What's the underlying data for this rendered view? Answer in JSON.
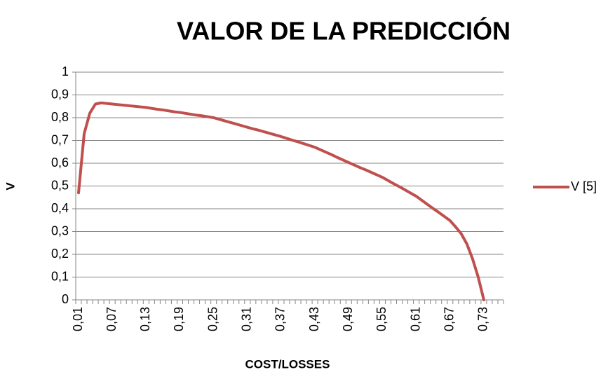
{
  "chart_data": {
    "type": "line",
    "title": "VALOR DE LA PREDICCIÓN",
    "x_label": "COST/LOSSES",
    "y_label": "V",
    "categories": [
      "0,01",
      null,
      null,
      null,
      null,
      null,
      "0,07",
      null,
      null,
      null,
      null,
      null,
      "0,13",
      null,
      null,
      null,
      null,
      null,
      "0,19",
      null,
      null,
      null,
      null,
      null,
      "0,25",
      null,
      null,
      null,
      null,
      null,
      "0,31",
      null,
      null,
      null,
      null,
      null,
      "0,37",
      null,
      null,
      null,
      null,
      null,
      "0,43",
      null,
      null,
      null,
      null,
      null,
      "0,49",
      null,
      null,
      null,
      null,
      null,
      "0,55",
      null,
      null,
      null,
      null,
      null,
      "0,61",
      null,
      null,
      null,
      null,
      null,
      "0,67",
      null,
      null,
      null,
      null,
      null,
      "0,73",
      null,
      null,
      null
    ],
    "series": [
      {
        "name": "V [5]",
        "color": "#c0504d",
        "values": [
          0.47,
          0.73,
          0.82,
          0.86,
          0.865,
          0.8625,
          0.86,
          0.8575,
          0.855,
          0.8525,
          0.85,
          0.8475,
          0.845,
          0.841,
          0.837,
          0.834,
          0.83,
          0.826,
          0.823,
          0.819,
          0.815,
          0.811,
          0.808,
          0.804,
          0.8,
          0.793,
          0.786,
          0.779,
          0.772,
          0.765,
          0.758,
          0.751,
          0.745,
          0.738,
          0.731,
          0.724,
          0.717,
          0.709,
          0.701,
          0.694,
          0.686,
          0.678,
          0.67,
          0.659,
          0.648,
          0.637,
          0.625,
          0.614,
          0.603,
          0.592,
          0.581,
          0.571,
          0.56,
          0.549,
          0.538,
          0.524,
          0.51,
          0.497,
          0.483,
          0.469,
          0.455,
          0.437,
          0.419,
          0.401,
          0.384,
          0.366,
          0.348,
          0.32,
          0.29,
          0.245,
          0.18,
          0.1,
          0,
          null,
          null,
          null
        ]
      }
    ],
    "ylim": [
      0,
      1
    ],
    "yticks": [
      0,
      {
        "value": 0.1,
        "label": "0,1"
      },
      {
        "value": 0.2,
        "label": "0,2"
      },
      {
        "value": 0.3,
        "label": "0,3"
      },
      {
        "value": 0.4,
        "label": "0,4"
      },
      {
        "value": 0.5,
        "label": "0,5"
      },
      {
        "value": 0.6,
        "label": "0,6"
      },
      {
        "value": 0.7,
        "label": "0,7"
      },
      {
        "value": 0.8,
        "label": "0,8"
      },
      {
        "value": 0.9,
        "label": "0,9"
      },
      1
    ],
    "grid": true,
    "legend": "right"
  }
}
